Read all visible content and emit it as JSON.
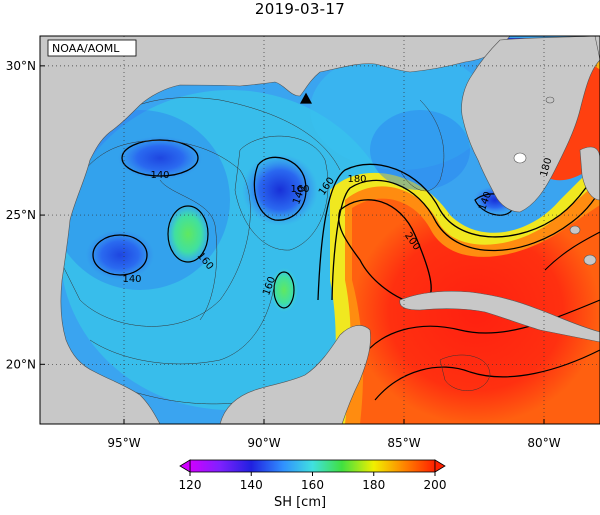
{
  "title": "2019-03-17",
  "credit": "NOAA/AOML",
  "map": {
    "lon_range": [
      -98,
      -78
    ],
    "lat_range": [
      18,
      31
    ],
    "lon_ticks": [
      {
        "value": -95,
        "label": "95°W"
      },
      {
        "value": -90,
        "label": "90°W"
      },
      {
        "value": -85,
        "label": "85°W"
      },
      {
        "value": -80,
        "label": "80°W"
      }
    ],
    "lat_ticks": [
      {
        "value": 20,
        "label": "20°N"
      },
      {
        "value": 25,
        "label": "25°N"
      },
      {
        "value": 30,
        "label": "30°N"
      }
    ],
    "contour_labels": [
      "140",
      "140",
      "140",
      "140",
      "160",
      "160",
      "160",
      "160",
      "180",
      "180",
      "200"
    ],
    "marker": {
      "lon": -88.5,
      "lat": 28.9,
      "symbol": "triangle"
    },
    "colors": {
      "land": "#c8c8c8",
      "ocean_low": "#2060ff",
      "ocean_mid": "#40e0c0",
      "ocean_high": "#ff3010"
    }
  },
  "colorbar": {
    "ticks": [
      "120",
      "140",
      "160",
      "180",
      "200"
    ],
    "label": "SH [cm]",
    "range": [
      120,
      200
    ]
  }
}
